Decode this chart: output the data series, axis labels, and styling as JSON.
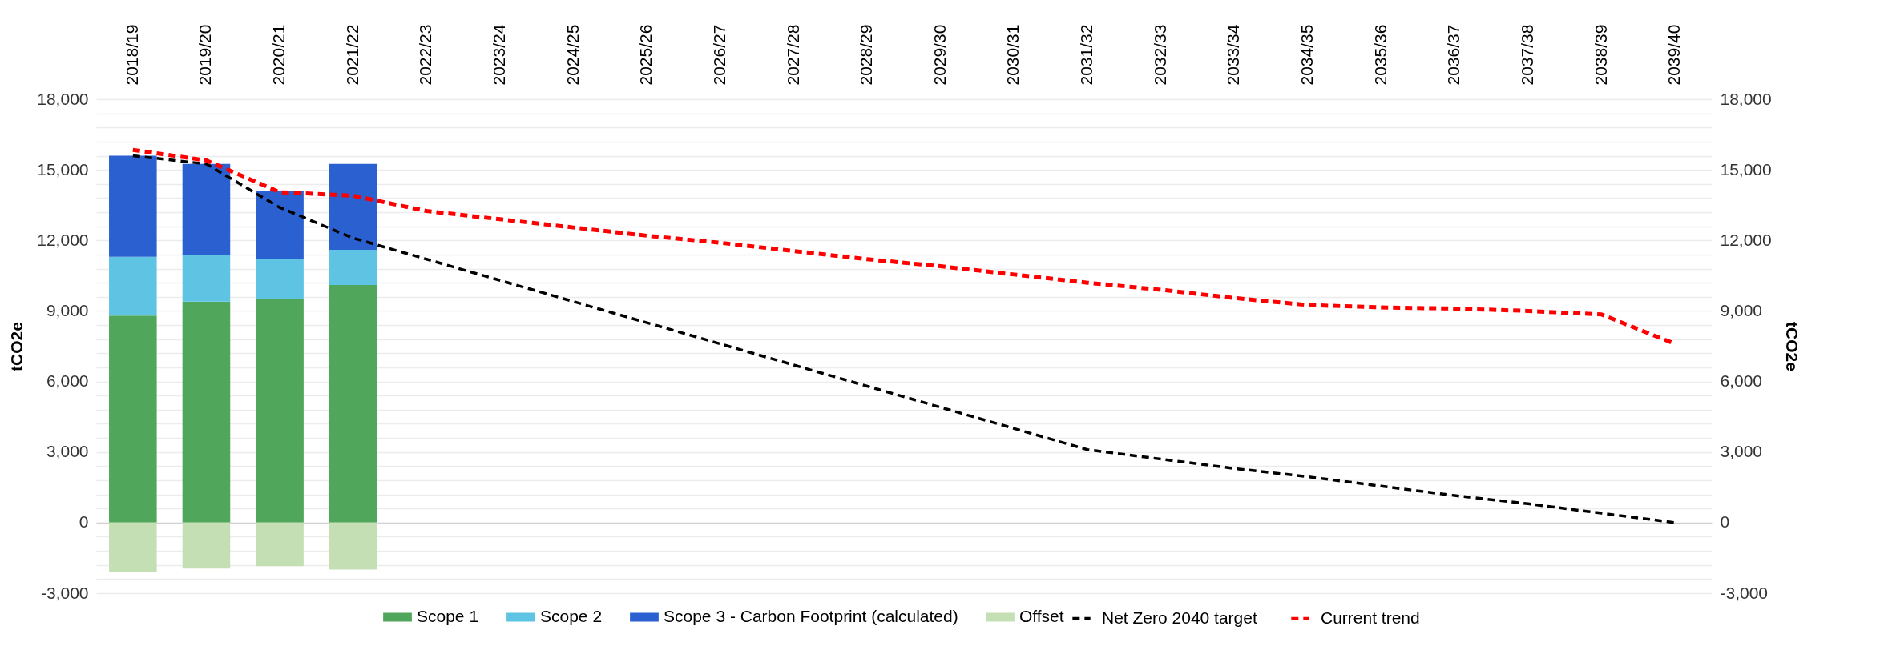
{
  "chart_data": {
    "type": "bar",
    "stacked": true,
    "ylabel": "tCO2e",
    "y2label": "tCO2e",
    "categories": [
      "2018/19",
      "2019/20",
      "2020/21",
      "2021/22",
      "2022/23",
      "2023/24",
      "2024/25",
      "2025/26",
      "2026/27",
      "2027/28",
      "2028/29",
      "2029/30",
      "2030/31",
      "2031/32",
      "2032/33",
      "2033/34",
      "2034/35",
      "2035/36",
      "2036/37",
      "2037/38",
      "2038/39",
      "2039/40"
    ],
    "series": [
      {
        "name": "Scope 1",
        "color": "#50a65a",
        "values": [
          8800,
          9400,
          9500,
          10100,
          null,
          null,
          null,
          null,
          null,
          null,
          null,
          null,
          null,
          null,
          null,
          null,
          null,
          null,
          null,
          null,
          null,
          null
        ]
      },
      {
        "name": "Scope 2",
        "color": "#5fc4e4",
        "values": [
          2500,
          2000,
          1700,
          1500,
          null,
          null,
          null,
          null,
          null,
          null,
          null,
          null,
          null,
          null,
          null,
          null,
          null,
          null,
          null,
          null,
          null,
          null
        ]
      },
      {
        "name": "Scope 3 - Carbon Footprint (calculated)",
        "color": "#2a60d0",
        "values": [
          4300,
          3850,
          2900,
          3650,
          null,
          null,
          null,
          null,
          null,
          null,
          null,
          null,
          null,
          null,
          null,
          null,
          null,
          null,
          null,
          null,
          null,
          null
        ]
      },
      {
        "name": "Offset",
        "color": "#c5dfb4",
        "values": [
          -2100,
          -1950,
          -1850,
          -2000,
          null,
          null,
          null,
          null,
          null,
          null,
          null,
          null,
          null,
          null,
          null,
          null,
          null,
          null,
          null,
          null,
          null,
          null
        ]
      },
      {
        "name": "Net Zero 2040 target",
        "color": "#000000",
        "type": "line",
        "axis": "y2",
        "line_style": "dashed",
        "values": [
          15600,
          15250,
          13400,
          12100,
          11200,
          10300,
          9400,
          8500,
          7600,
          6700,
          5800,
          4900,
          4000,
          3100,
          2700,
          2300,
          1950,
          1550,
          1150,
          800,
          400,
          0
        ]
      },
      {
        "name": "Current trend",
        "color": "#ff0000",
        "type": "line",
        "axis": "y2",
        "line_style": "dashed",
        "values": [
          15850,
          15400,
          14050,
          13900,
          13250,
          12900,
          12550,
          12200,
          11900,
          11550,
          11200,
          10900,
          10550,
          10200,
          9900,
          9550,
          9250,
          9150,
          9100,
          9000,
          8850,
          7600
        ]
      }
    ],
    "ylim": [
      -3000,
      18000
    ],
    "yticks": [
      {
        "value": -3000,
        "label": "-3,000"
      },
      {
        "value": -2400,
        "label": null
      },
      {
        "value": -1800,
        "label": null
      },
      {
        "value": -1200,
        "label": null
      },
      {
        "value": -600,
        "label": null
      },
      0,
      {
        "value": 600,
        "label": null
      },
      {
        "value": 1200,
        "label": null
      },
      {
        "value": 1800,
        "label": null
      },
      {
        "value": 2400,
        "label": null
      },
      {
        "value": 3000,
        "label": "3,000"
      },
      {
        "value": 3600,
        "label": null
      },
      {
        "value": 4200,
        "label": null
      },
      {
        "value": 4800,
        "label": null
      },
      {
        "value": 5400,
        "label": null
      },
      {
        "value": 6000,
        "label": "6,000"
      },
      {
        "value": 6600,
        "label": null
      },
      {
        "value": 7200,
        "label": null
      },
      {
        "value": 7800,
        "label": null
      },
      {
        "value": 8400,
        "label": null
      },
      {
        "value": 9000,
        "label": "9,000"
      },
      {
        "value": 9600,
        "label": null
      },
      {
        "value": 10200,
        "label": null
      },
      {
        "value": 10800,
        "label": null
      },
      {
        "value": 11400,
        "label": null
      },
      {
        "value": 12000,
        "label": "12,000"
      },
      {
        "value": 12600,
        "label": null
      },
      {
        "value": 13200,
        "label": null
      },
      {
        "value": 13800,
        "label": null
      },
      {
        "value": 14400,
        "label": null
      },
      {
        "value": 15000,
        "label": "15,000"
      },
      {
        "value": 15600,
        "label": null
      },
      {
        "value": 16200,
        "label": null
      },
      {
        "value": 16800,
        "label": null
      },
      {
        "value": 17400,
        "label": null
      },
      {
        "value": 18000,
        "label": "18,000"
      }
    ],
    "y2lim": [
      -3000,
      18000
    ],
    "y2ticks": [
      {
        "value": -3000,
        "label": "-3,000"
      },
      0,
      {
        "value": 3000,
        "label": "3,000"
      },
      {
        "value": 6000,
        "label": "6,000"
      },
      {
        "value": 9000,
        "label": "9,000"
      },
      {
        "value": 12000,
        "label": "12,000"
      },
      {
        "value": 15000,
        "label": "15,000"
      },
      {
        "value": 18000,
        "label": "18,000"
      }
    ],
    "grid": "y",
    "legend": "bottom"
  }
}
